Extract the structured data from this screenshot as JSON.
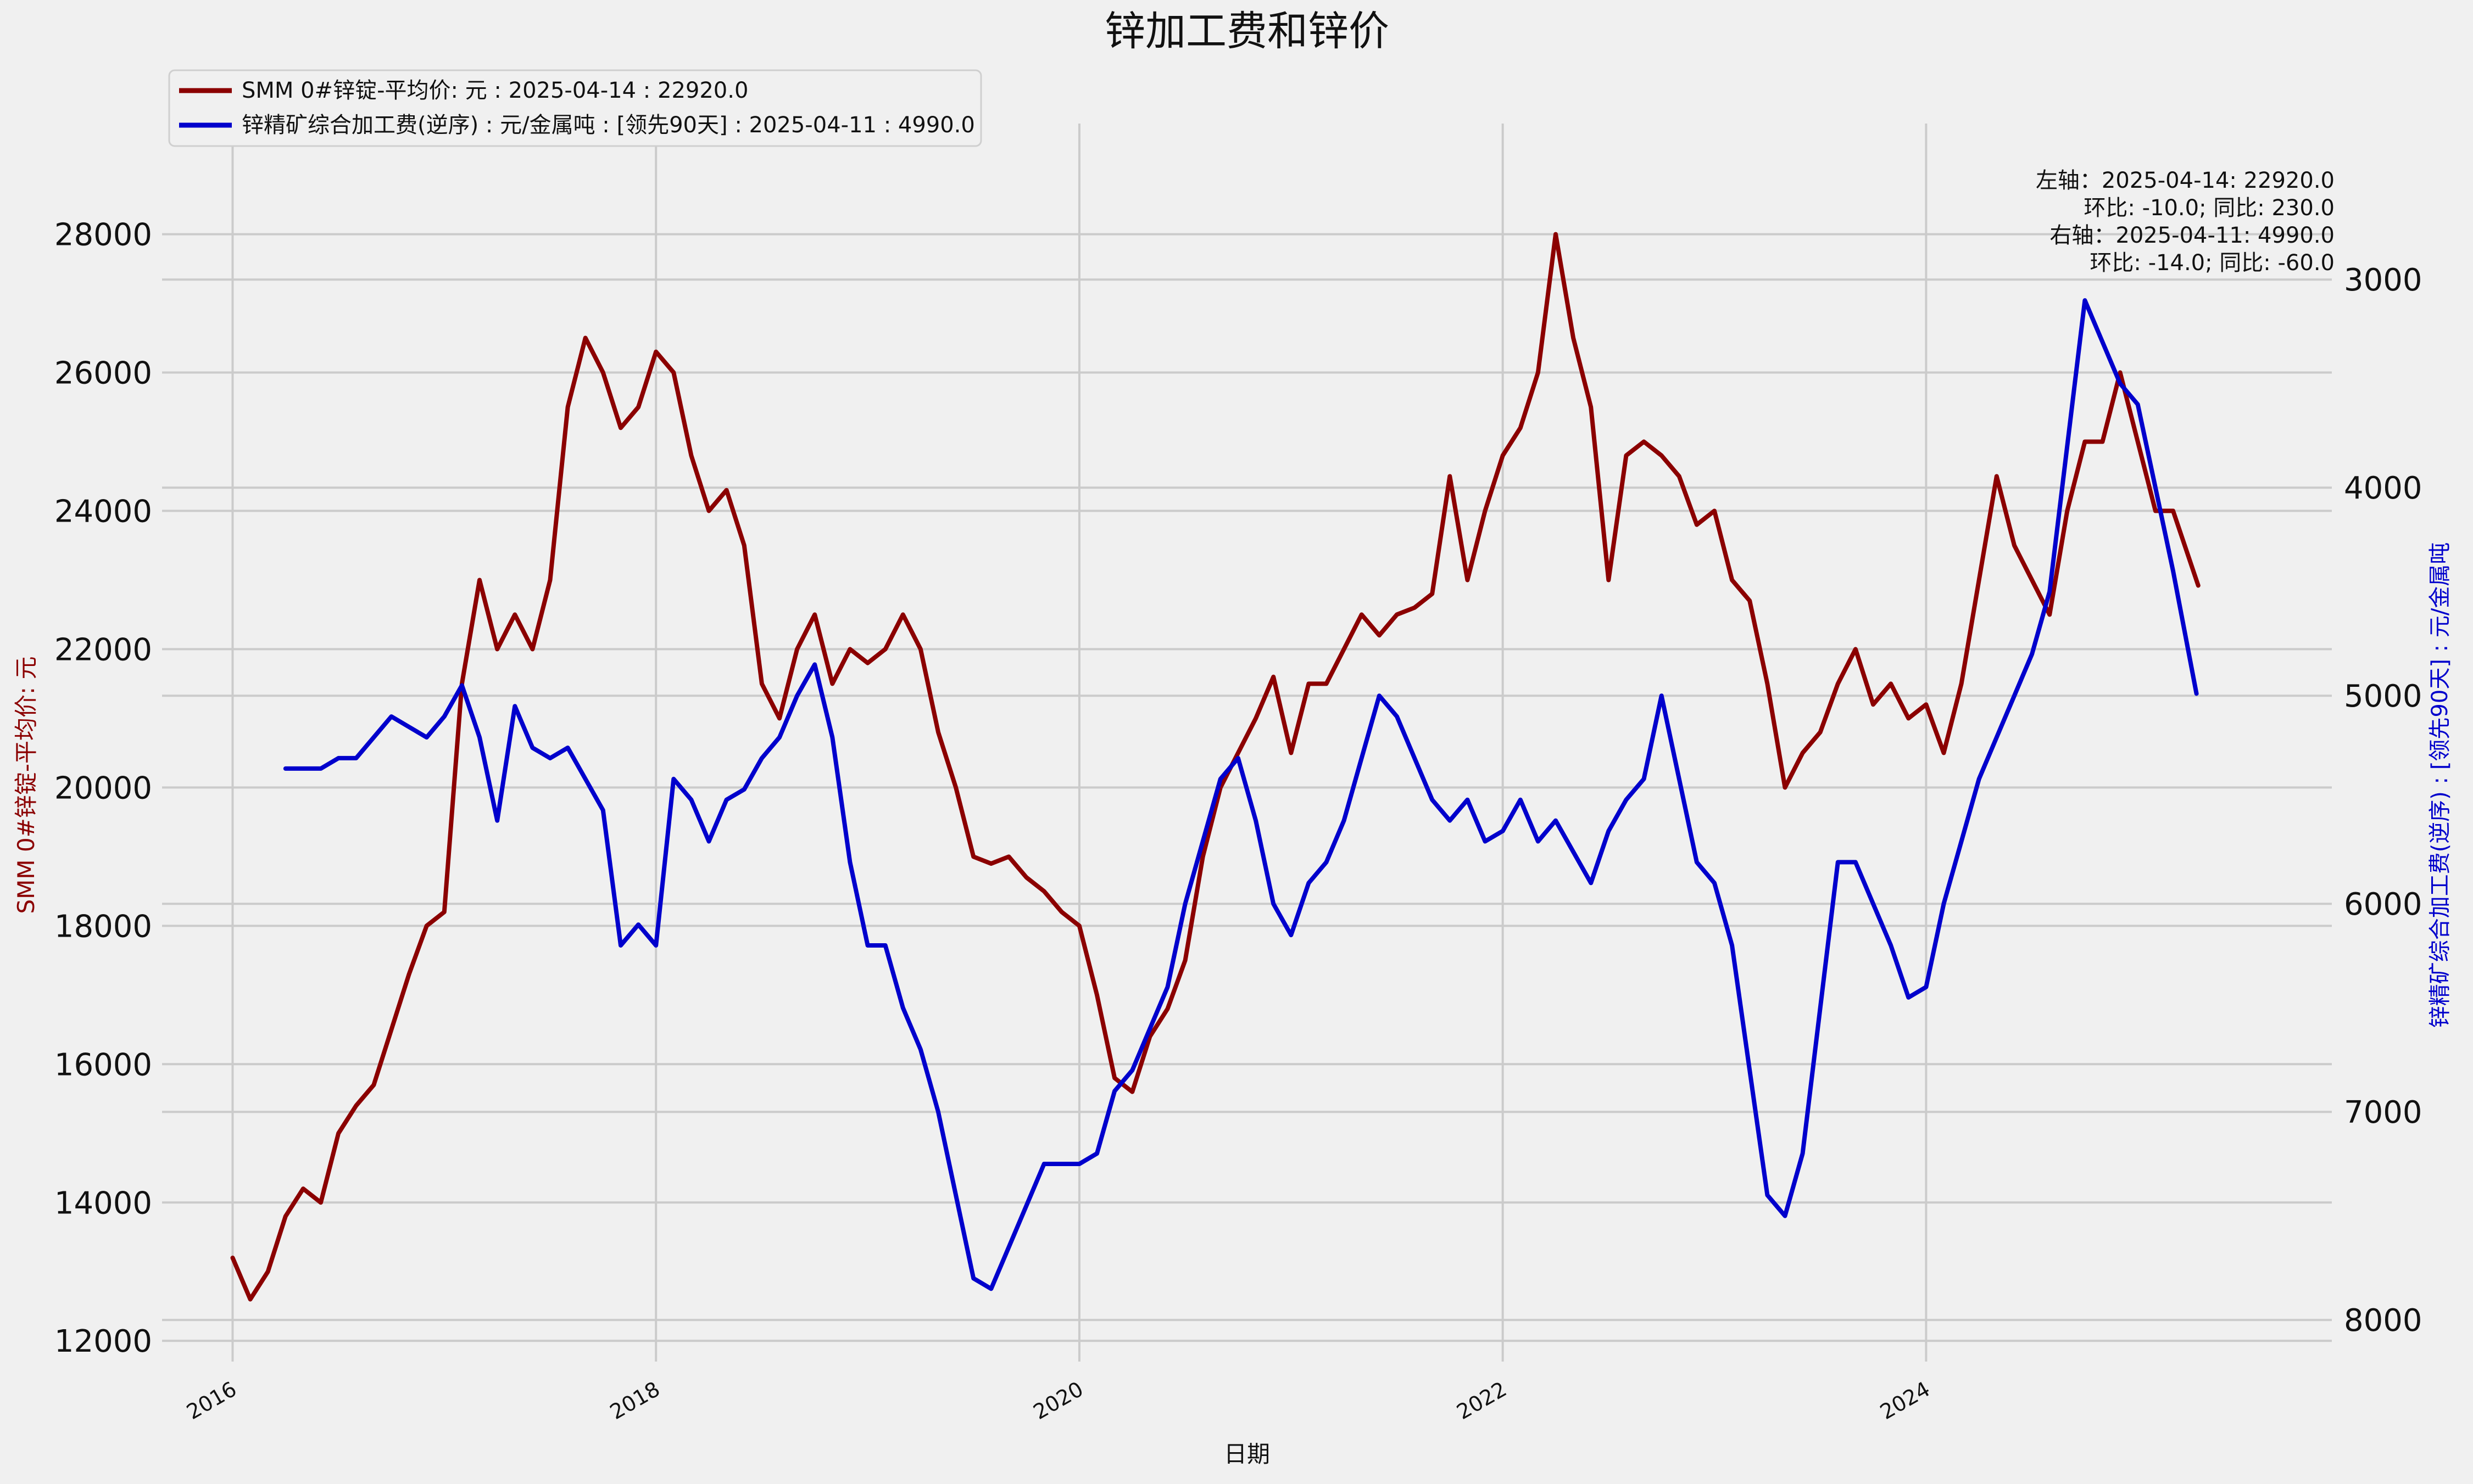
{
  "chart_data": {
    "type": "line",
    "title": "锌加工费和锌价",
    "xlabel": "日期",
    "ylabel_left": "SMM 0#锌锭-平均价: 元",
    "ylabel_right": "锌精矿综合加工费(逆序) : [领先90天] : 元/金属吨",
    "x_ticks": [
      "2016",
      "2018",
      "2020",
      "2022",
      "2024"
    ],
    "x_range": [
      "2015-09",
      "2025-12"
    ],
    "y_left": {
      "ticks": [
        12000,
        14000,
        16000,
        18000,
        20000,
        22000,
        24000,
        26000,
        28000
      ],
      "range": [
        11700,
        29600
      ]
    },
    "y_right": {
      "ticks": [
        3000,
        4000,
        5000,
        6000,
        7000,
        8000
      ],
      "range": [
        8200,
        2250
      ],
      "inverted": true
    },
    "grid": true,
    "legend_position": "top-left",
    "colors": {
      "series1": "#8b0000",
      "series2": "#0000cc"
    },
    "annotations": [
      "左轴：2025-04-14: 22920.0",
      "环比: -10.0; 同比: 230.0",
      "右轴：2025-04-11: 4990.0",
      "环比: -14.0; 同比: -60.0"
    ],
    "series": [
      {
        "name": "SMM 0#锌锭-平均价: 元 : 2025-04-14 : 22920.0",
        "axis": "left",
        "points": [
          [
            "2016-01-01",
            13200
          ],
          [
            "2016-02-01",
            12600
          ],
          [
            "2016-03-01",
            13000
          ],
          [
            "2016-04-01",
            13800
          ],
          [
            "2016-05-01",
            14200
          ],
          [
            "2016-06-01",
            14000
          ],
          [
            "2016-07-01",
            15000
          ],
          [
            "2016-08-01",
            15400
          ],
          [
            "2016-09-01",
            15700
          ],
          [
            "2016-10-01",
            16500
          ],
          [
            "2016-11-01",
            17300
          ],
          [
            "2016-12-01",
            18000
          ],
          [
            "2017-01-01",
            18200
          ],
          [
            "2017-02-01",
            21500
          ],
          [
            "2017-03-01",
            23000
          ],
          [
            "2017-04-01",
            22000
          ],
          [
            "2017-05-01",
            22500
          ],
          [
            "2017-06-01",
            22000
          ],
          [
            "2017-07-01",
            23000
          ],
          [
            "2017-08-01",
            25500
          ],
          [
            "2017-09-01",
            26500
          ],
          [
            "2017-10-01",
            26000
          ],
          [
            "2017-11-01",
            25200
          ],
          [
            "2017-12-01",
            25500
          ],
          [
            "2018-01-01",
            26300
          ],
          [
            "2018-02-01",
            26000
          ],
          [
            "2018-03-01",
            24800
          ],
          [
            "2018-04-01",
            24000
          ],
          [
            "2018-05-01",
            24300
          ],
          [
            "2018-06-01",
            23500
          ],
          [
            "2018-07-01",
            21500
          ],
          [
            "2018-08-01",
            21000
          ],
          [
            "2018-09-01",
            22000
          ],
          [
            "2018-10-01",
            22500
          ],
          [
            "2018-11-01",
            21500
          ],
          [
            "2018-12-01",
            22000
          ],
          [
            "2019-01-01",
            21800
          ],
          [
            "2019-02-01",
            22000
          ],
          [
            "2019-03-01",
            22500
          ],
          [
            "2019-04-01",
            22000
          ],
          [
            "2019-05-01",
            20800
          ],
          [
            "2019-06-01",
            20000
          ],
          [
            "2019-07-01",
            19000
          ],
          [
            "2019-08-01",
            18900
          ],
          [
            "2019-09-01",
            19000
          ],
          [
            "2019-10-01",
            18700
          ],
          [
            "2019-11-01",
            18500
          ],
          [
            "2019-12-01",
            18200
          ],
          [
            "2020-01-01",
            18000
          ],
          [
            "2020-02-01",
            17000
          ],
          [
            "2020-03-01",
            15800
          ],
          [
            "2020-04-01",
            15600
          ],
          [
            "2020-05-01",
            16400
          ],
          [
            "2020-06-01",
            16800
          ],
          [
            "2020-07-01",
            17500
          ],
          [
            "2020-08-01",
            19000
          ],
          [
            "2020-09-01",
            20000
          ],
          [
            "2020-10-01",
            20500
          ],
          [
            "2020-11-01",
            21000
          ],
          [
            "2020-12-01",
            21600
          ],
          [
            "2021-01-01",
            20500
          ],
          [
            "2021-02-01",
            21500
          ],
          [
            "2021-03-01",
            21500
          ],
          [
            "2021-04-01",
            22000
          ],
          [
            "2021-05-01",
            22500
          ],
          [
            "2021-06-01",
            22200
          ],
          [
            "2021-07-01",
            22500
          ],
          [
            "2021-08-01",
            22600
          ],
          [
            "2021-09-01",
            22800
          ],
          [
            "2021-10-01",
            24500
          ],
          [
            "2021-11-01",
            23000
          ],
          [
            "2021-12-01",
            24000
          ],
          [
            "2022-01-01",
            24800
          ],
          [
            "2022-02-01",
            25200
          ],
          [
            "2022-03-01",
            26000
          ],
          [
            "2022-04-01",
            28000
          ],
          [
            "2022-05-01",
            26500
          ],
          [
            "2022-06-01",
            25500
          ],
          [
            "2022-07-01",
            23000
          ],
          [
            "2022-08-01",
            24800
          ],
          [
            "2022-09-01",
            25000
          ],
          [
            "2022-10-01",
            24800
          ],
          [
            "2022-11-01",
            24500
          ],
          [
            "2022-12-01",
            23800
          ],
          [
            "2023-01-01",
            24000
          ],
          [
            "2023-02-01",
            23000
          ],
          [
            "2023-03-01",
            22700
          ],
          [
            "2023-04-01",
            21500
          ],
          [
            "2023-05-01",
            20000
          ],
          [
            "2023-06-01",
            20500
          ],
          [
            "2023-07-01",
            20800
          ],
          [
            "2023-08-01",
            21500
          ],
          [
            "2023-09-01",
            22000
          ],
          [
            "2023-10-01",
            21200
          ],
          [
            "2023-11-01",
            21500
          ],
          [
            "2023-12-01",
            21000
          ],
          [
            "2024-01-01",
            21200
          ],
          [
            "2024-02-01",
            20500
          ],
          [
            "2024-03-01",
            21500
          ],
          [
            "2024-04-01",
            23000
          ],
          [
            "2024-05-01",
            24500
          ],
          [
            "2024-06-01",
            23500
          ],
          [
            "2024-07-01",
            23000
          ],
          [
            "2024-08-01",
            22500
          ],
          [
            "2024-09-01",
            24000
          ],
          [
            "2024-10-01",
            25000
          ],
          [
            "2024-11-01",
            25000
          ],
          [
            "2024-12-01",
            26000
          ],
          [
            "2025-01-01",
            25000
          ],
          [
            "2025-02-01",
            24000
          ],
          [
            "2025-03-01",
            24000
          ],
          [
            "2025-04-14",
            22920
          ]
        ]
      },
      {
        "name": "锌精矿综合加工费(逆序) : 元/金属吨 : [领先90天] : 2025-04-11 : 4990.0",
        "axis": "right",
        "points": [
          [
            "2016-04-01",
            5350
          ],
          [
            "2016-06-01",
            5350
          ],
          [
            "2016-07-01",
            5300
          ],
          [
            "2016-08-01",
            5300
          ],
          [
            "2016-09-01",
            5200
          ],
          [
            "2016-10-01",
            5100
          ],
          [
            "2016-11-01",
            5150
          ],
          [
            "2016-12-01",
            5200
          ],
          [
            "2017-01-01",
            5100
          ],
          [
            "2017-02-01",
            4950
          ],
          [
            "2017-03-01",
            5200
          ],
          [
            "2017-04-01",
            5600
          ],
          [
            "2017-05-01",
            5050
          ],
          [
            "2017-06-01",
            5250
          ],
          [
            "2017-07-01",
            5300
          ],
          [
            "2017-08-01",
            5250
          ],
          [
            "2017-09-01",
            5400
          ],
          [
            "2017-10-01",
            5550
          ],
          [
            "2017-11-01",
            6200
          ],
          [
            "2017-12-01",
            6100
          ],
          [
            "2018-01-01",
            6200
          ],
          [
            "2018-02-01",
            5400
          ],
          [
            "2018-03-01",
            5500
          ],
          [
            "2018-04-01",
            5700
          ],
          [
            "2018-05-01",
            5500
          ],
          [
            "2018-06-01",
            5450
          ],
          [
            "2018-07-01",
            5300
          ],
          [
            "2018-08-01",
            5200
          ],
          [
            "2018-09-01",
            5000
          ],
          [
            "2018-10-01",
            4850
          ],
          [
            "2018-11-01",
            5200
          ],
          [
            "2018-12-01",
            5800
          ],
          [
            "2019-01-01",
            6200
          ],
          [
            "2019-02-01",
            6200
          ],
          [
            "2019-03-01",
            6500
          ],
          [
            "2019-04-01",
            6700
          ],
          [
            "2019-05-01",
            7000
          ],
          [
            "2019-06-01",
            7400
          ],
          [
            "2019-07-01",
            7800
          ],
          [
            "2019-08-01",
            7850
          ],
          [
            "2019-09-01",
            7650
          ],
          [
            "2019-10-01",
            7450
          ],
          [
            "2019-11-01",
            7250
          ],
          [
            "2019-12-01",
            7250
          ],
          [
            "2020-01-01",
            7250
          ],
          [
            "2020-02-01",
            7200
          ],
          [
            "2020-03-01",
            6900
          ],
          [
            "2020-04-01",
            6800
          ],
          [
            "2020-05-01",
            6600
          ],
          [
            "2020-06-01",
            6400
          ],
          [
            "2020-07-01",
            6000
          ],
          [
            "2020-08-01",
            5700
          ],
          [
            "2020-09-01",
            5400
          ],
          [
            "2020-10-01",
            5300
          ],
          [
            "2020-11-01",
            5600
          ],
          [
            "2020-12-01",
            6000
          ],
          [
            "2021-01-01",
            6150
          ],
          [
            "2021-02-01",
            5900
          ],
          [
            "2021-03-01",
            5800
          ],
          [
            "2021-04-01",
            5600
          ],
          [
            "2021-05-01",
            5300
          ],
          [
            "2021-06-01",
            5000
          ],
          [
            "2021-07-01",
            5100
          ],
          [
            "2021-08-01",
            5300
          ],
          [
            "2021-09-01",
            5500
          ],
          [
            "2021-10-01",
            5600
          ],
          [
            "2021-11-01",
            5500
          ],
          [
            "2021-12-01",
            5700
          ],
          [
            "2022-01-01",
            5650
          ],
          [
            "2022-02-01",
            5500
          ],
          [
            "2022-03-01",
            5700
          ],
          [
            "2022-04-01",
            5600
          ],
          [
            "2022-05-01",
            5750
          ],
          [
            "2022-06-01",
            5900
          ],
          [
            "2022-07-01",
            5650
          ],
          [
            "2022-08-01",
            5500
          ],
          [
            "2022-09-01",
            5400
          ],
          [
            "2022-10-01",
            5000
          ],
          [
            "2022-11-01",
            5400
          ],
          [
            "2022-12-01",
            5800
          ],
          [
            "2023-01-01",
            5900
          ],
          [
            "2023-02-01",
            6200
          ],
          [
            "2023-03-01",
            6800
          ],
          [
            "2023-04-01",
            7400
          ],
          [
            "2023-05-01",
            7500
          ],
          [
            "2023-06-01",
            7200
          ],
          [
            "2023-07-01",
            6500
          ],
          [
            "2023-08-01",
            5800
          ],
          [
            "2023-09-01",
            5800
          ],
          [
            "2023-10-01",
            6000
          ],
          [
            "2023-11-01",
            6200
          ],
          [
            "2023-12-01",
            6450
          ],
          [
            "2024-01-01",
            6400
          ],
          [
            "2024-02-01",
            6000
          ],
          [
            "2024-03-01",
            5700
          ],
          [
            "2024-04-01",
            5400
          ],
          [
            "2024-05-01",
            5200
          ],
          [
            "2024-06-01",
            5000
          ],
          [
            "2024-07-01",
            4800
          ],
          [
            "2024-08-01",
            4500
          ],
          [
            "2024-09-01",
            3800
          ],
          [
            "2024-10-01",
            3100
          ],
          [
            "2024-11-01",
            3300
          ],
          [
            "2024-12-01",
            3500
          ],
          [
            "2025-01-01",
            3600
          ],
          [
            "2025-02-01",
            4000
          ],
          [
            "2025-03-01",
            4400
          ],
          [
            "2025-04-11",
            4990
          ]
        ]
      }
    ]
  }
}
